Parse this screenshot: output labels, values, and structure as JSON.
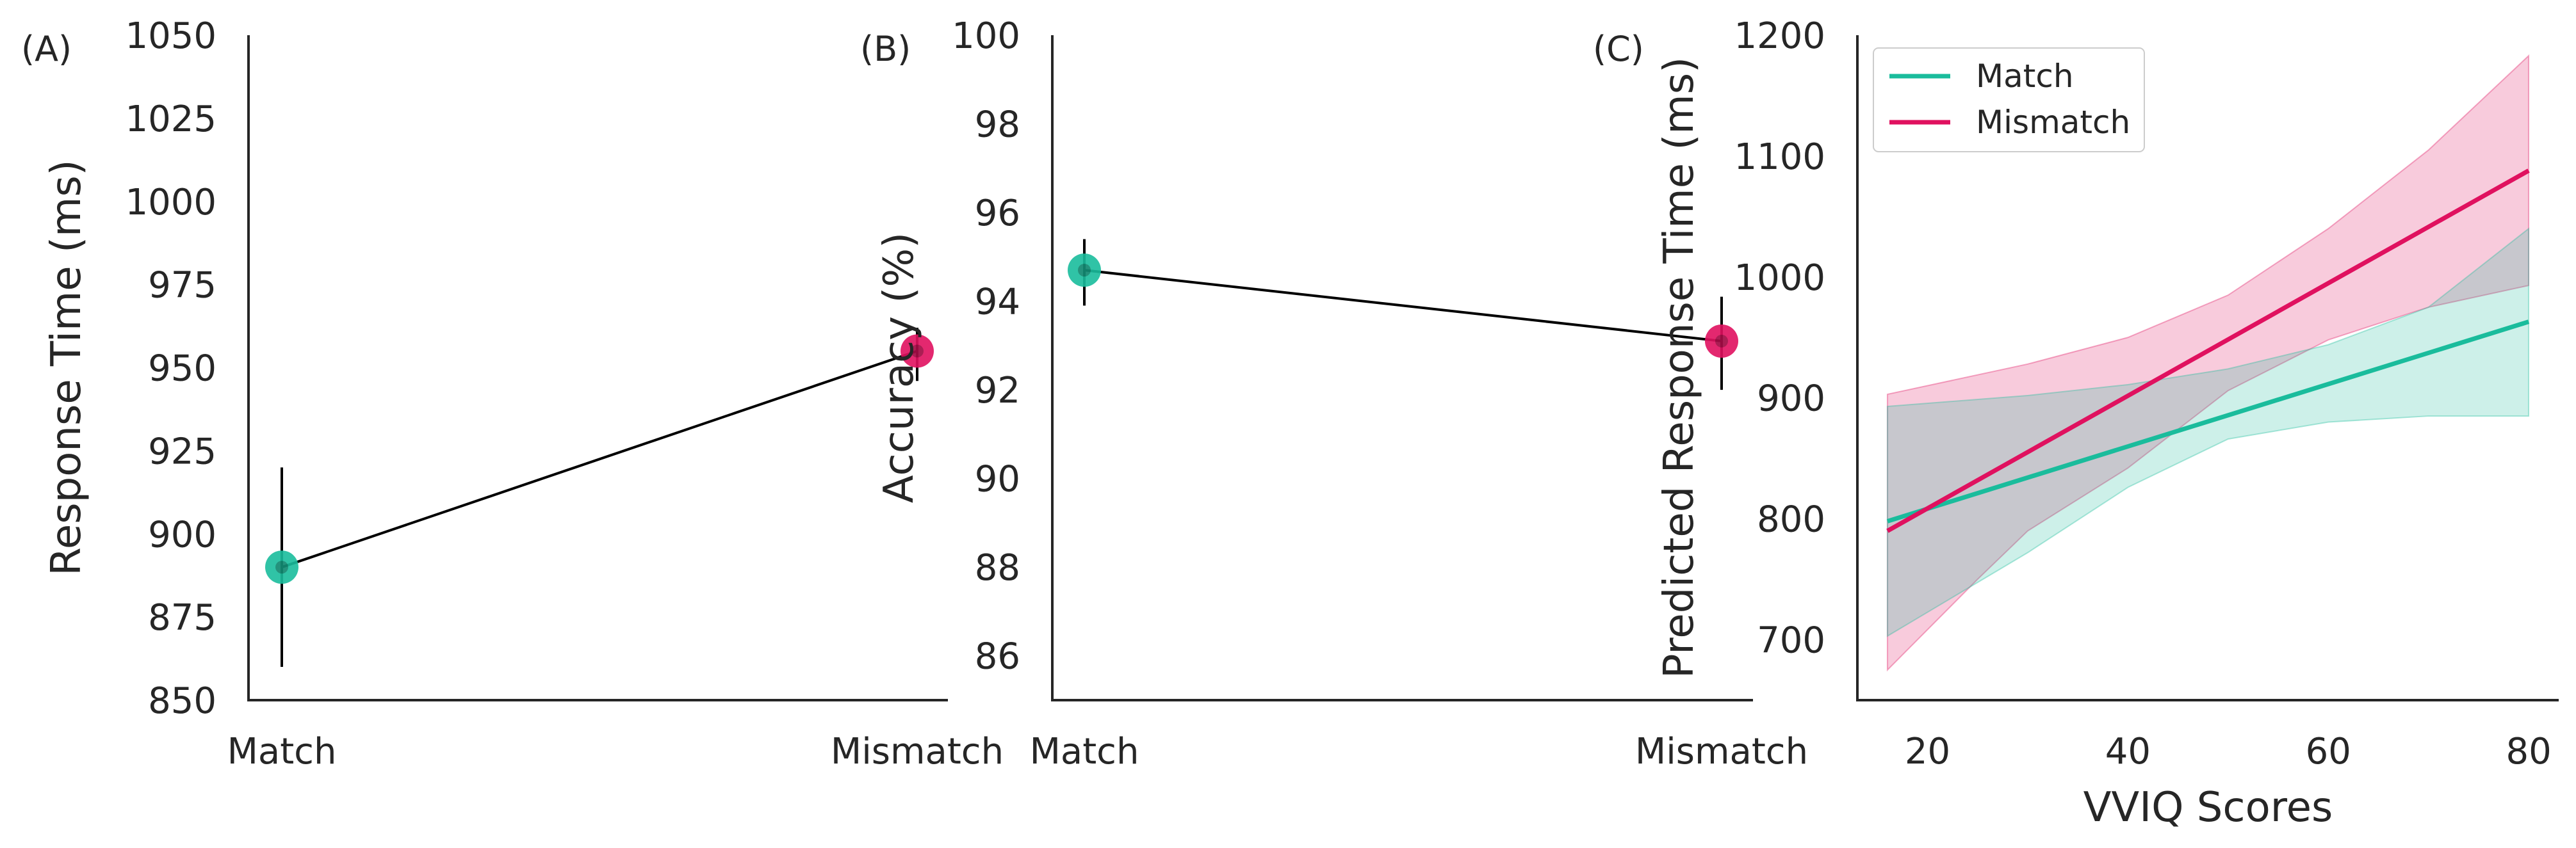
{
  "colors": {
    "match": "#1abc9c",
    "mismatch": "#e0115f",
    "axis": "#262626",
    "line": "#000000"
  },
  "chart_data": [
    {
      "panel": "(A)",
      "type": "line",
      "categories": [
        "Match",
        "Mismatch"
      ],
      "xlabel": "",
      "ylabel": "Response Time (ms)",
      "ylim": [
        850,
        1050
      ],
      "yticks": [
        850,
        875,
        900,
        925,
        950,
        975,
        1000,
        1025,
        1050
      ],
      "points": [
        {
          "category": "Match",
          "value": 890,
          "err_low": 860,
          "err_high": 920,
          "color_key": "match"
        },
        {
          "category": "Mismatch",
          "value": 955,
          "err_low": 946,
          "err_high": 962,
          "color_key": "mismatch"
        }
      ],
      "grid": false
    },
    {
      "panel": "(B)",
      "type": "line",
      "categories": [
        "Match",
        "Mismatch"
      ],
      "xlabel": "",
      "ylabel": "Accuracy (%)",
      "ylim": [
        85,
        100
      ],
      "yticks": [
        86,
        88,
        90,
        92,
        94,
        96,
        98,
        100
      ],
      "points": [
        {
          "category": "Match",
          "value": 94.7,
          "err_low": 93.9,
          "err_high": 95.4,
          "color_key": "match"
        },
        {
          "category": "Mismatch",
          "value": 93.1,
          "err_low": 92.0,
          "err_high": 94.1,
          "color_key": "mismatch"
        }
      ],
      "grid": false
    },
    {
      "panel": "(C)",
      "type": "line",
      "xlabel": "VVIQ Scores",
      "ylabel": "Predicted Response Time (ms)",
      "xlim": [
        13,
        83
      ],
      "ylim": [
        650,
        1200
      ],
      "xticks": [
        20,
        40,
        60,
        80
      ],
      "yticks": [
        700,
        800,
        900,
        1000,
        1100,
        1200
      ],
      "legend": "top-left",
      "grid": false,
      "series": [
        {
          "name": "Match",
          "color_key": "match",
          "line": [
            [
              16,
              798
            ],
            [
              80,
              963
            ]
          ],
          "band_upper": [
            [
              16,
              893
            ],
            [
              30,
              902
            ],
            [
              40,
              911
            ],
            [
              50,
              924
            ],
            [
              60,
              944
            ],
            [
              70,
              975
            ],
            [
              80,
              1040
            ]
          ],
          "band_lower": [
            [
              16,
              703
            ],
            [
              30,
              772
            ],
            [
              40,
              826
            ],
            [
              50,
              866
            ],
            [
              60,
              880
            ],
            [
              70,
              885
            ],
            [
              80,
              885
            ]
          ]
        },
        {
          "name": "Mismatch",
          "color_key": "mismatch",
          "line": [
            [
              16,
              790
            ],
            [
              80,
              1088
            ]
          ],
          "band_upper": [
            [
              16,
              903
            ],
            [
              30,
              928
            ],
            [
              40,
              950
            ],
            [
              50,
              985
            ],
            [
              60,
              1040
            ],
            [
              70,
              1105
            ],
            [
              80,
              1183
            ]
          ],
          "band_lower": [
            [
              16,
              675
            ],
            [
              25,
              750
            ],
            [
              30,
              790
            ],
            [
              40,
              842
            ],
            [
              50,
              906
            ],
            [
              60,
              948
            ],
            [
              70,
              975
            ],
            [
              80,
              993
            ]
          ]
        }
      ]
    }
  ]
}
